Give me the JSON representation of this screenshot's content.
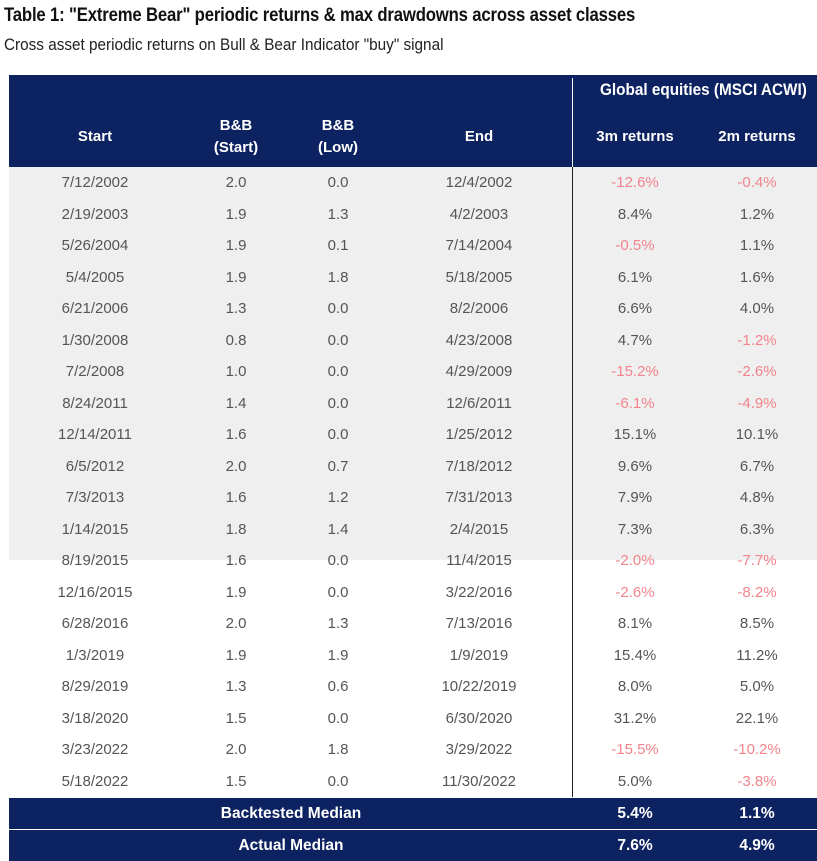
{
  "title": "Table 1: \"Extreme Bear\" periodic returns & max drawdowns across asset classes",
  "subtitle": "Cross asset periodic returns on Bull & Bear Indicator \"buy\" signal",
  "group_header": "Global equities (MSCI ACWI)",
  "columns": {
    "start": "Start",
    "bb_start": "B&B\n(Start)",
    "bb_low": "B&B\n(Low)",
    "end": "End",
    "ret_3m": "3m returns",
    "ret_2m": "2m returns"
  },
  "rows": [
    {
      "start": "7/12/2002",
      "bb_start": "2.0",
      "bb_low": "0.0",
      "end": "12/4/2002",
      "r3m": "-12.6%",
      "r2m": "-0.4%"
    },
    {
      "start": "2/19/2003",
      "bb_start": "1.9",
      "bb_low": "1.3",
      "end": "4/2/2003",
      "r3m": "8.4%",
      "r2m": "1.2%"
    },
    {
      "start": "5/26/2004",
      "bb_start": "1.9",
      "bb_low": "0.1",
      "end": "7/14/2004",
      "r3m": "-0.5%",
      "r2m": "1.1%"
    },
    {
      "start": "5/4/2005",
      "bb_start": "1.9",
      "bb_low": "1.8",
      "end": "5/18/2005",
      "r3m": "6.1%",
      "r2m": "1.6%"
    },
    {
      "start": "6/21/2006",
      "bb_start": "1.3",
      "bb_low": "0.0",
      "end": "8/2/2006",
      "r3m": "6.6%",
      "r2m": "4.0%"
    },
    {
      "start": "1/30/2008",
      "bb_start": "0.8",
      "bb_low": "0.0",
      "end": "4/23/2008",
      "r3m": "4.7%",
      "r2m": "-1.2%"
    },
    {
      "start": "7/2/2008",
      "bb_start": "1.0",
      "bb_low": "0.0",
      "end": "4/29/2009",
      "r3m": "-15.2%",
      "r2m": "-2.6%"
    },
    {
      "start": "8/24/2011",
      "bb_start": "1.4",
      "bb_low": "0.0",
      "end": "12/6/2011",
      "r3m": "-6.1%",
      "r2m": "-4.9%"
    },
    {
      "start": "12/14/2011",
      "bb_start": "1.6",
      "bb_low": "0.0",
      "end": "1/25/2012",
      "r3m": "15.1%",
      "r2m": "10.1%"
    },
    {
      "start": "6/5/2012",
      "bb_start": "2.0",
      "bb_low": "0.7",
      "end": "7/18/2012",
      "r3m": "9.6%",
      "r2m": "6.7%"
    },
    {
      "start": "7/3/2013",
      "bb_start": "1.6",
      "bb_low": "1.2",
      "end": "7/31/2013",
      "r3m": "7.9%",
      "r2m": "4.8%"
    },
    {
      "start": "1/14/2015",
      "bb_start": "1.8",
      "bb_low": "1.4",
      "end": "2/4/2015",
      "r3m": "7.3%",
      "r2m": "6.3%"
    },
    {
      "start": "8/19/2015",
      "bb_start": "1.6",
      "bb_low": "0.0",
      "end": "11/4/2015",
      "r3m": "-2.0%",
      "r2m": "-7.7%"
    },
    {
      "start": "12/16/2015",
      "bb_start": "1.9",
      "bb_low": "0.0",
      "end": "3/22/2016",
      "r3m": "-2.6%",
      "r2m": "-8.2%"
    },
    {
      "start": "6/28/2016",
      "bb_start": "2.0",
      "bb_low": "1.3",
      "end": "7/13/2016",
      "r3m": "8.1%",
      "r2m": "8.5%"
    },
    {
      "start": "1/3/2019",
      "bb_start": "1.9",
      "bb_low": "1.9",
      "end": "1/9/2019",
      "r3m": "15.4%",
      "r2m": "11.2%"
    },
    {
      "start": "8/29/2019",
      "bb_start": "1.3",
      "bb_low": "0.6",
      "end": "10/22/2019",
      "r3m": "8.0%",
      "r2m": "5.0%"
    },
    {
      "start": "3/18/2020",
      "bb_start": "1.5",
      "bb_low": "0.0",
      "end": "6/30/2020",
      "r3m": "31.2%",
      "r2m": "22.1%"
    },
    {
      "start": "3/23/2022",
      "bb_start": "2.0",
      "bb_low": "1.8",
      "end": "3/29/2022",
      "r3m": "-15.5%",
      "r2m": "-10.2%"
    },
    {
      "start": "5/18/2022",
      "bb_start": "1.5",
      "bb_low": "0.0",
      "end": "11/30/2022",
      "r3m": "5.0%",
      "r2m": "-3.8%"
    }
  ],
  "summary": [
    {
      "label": "Backtested Median",
      "r3m": "5.4%",
      "r2m": "1.1%"
    },
    {
      "label": "Actual Median",
      "r3m": "7.6%",
      "r2m": "4.9%"
    }
  ],
  "colors": {
    "header_bg": "#0d2260",
    "shaded_row_bg": "#efefef",
    "negative_text": "#f2838c",
    "body_text": "#555555"
  }
}
